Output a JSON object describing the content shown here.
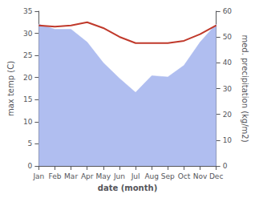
{
  "chart_data": {
    "type": "line",
    "xlabel": "date (month)",
    "ylabel": "max temp (C)",
    "y2label": "med. precipitation (kg/m2)",
    "categories": [
      "Jan",
      "Feb",
      "Mar",
      "Apr",
      "May",
      "Jun",
      "Jul",
      "Aug",
      "Sep",
      "Oct",
      "Nov",
      "Dec"
    ],
    "series": [
      {
        "type": "area",
        "axis": "y2",
        "color": "#b0bef0",
        "values": [
          55.0,
          53.0,
          53.0,
          48.0,
          40.0,
          34.0,
          28.5,
          35.0,
          34.5,
          39.0,
          48.0,
          55.0
        ]
      },
      {
        "type": "line",
        "color": "#c0392b",
        "values": [
          31.8,
          31.5,
          31.8,
          32.5,
          31.2,
          29.2,
          27.8,
          27.8,
          27.8,
          28.3,
          29.8,
          31.8
        ]
      }
    ],
    "ylim": [
      0,
      35
    ],
    "yticks": [
      0,
      5,
      10,
      15,
      20,
      25,
      30,
      35
    ],
    "y2lim": [
      0,
      60
    ],
    "y2ticks": [
      0,
      10,
      20,
      30,
      40,
      50,
      60
    ],
    "grid": false
  }
}
